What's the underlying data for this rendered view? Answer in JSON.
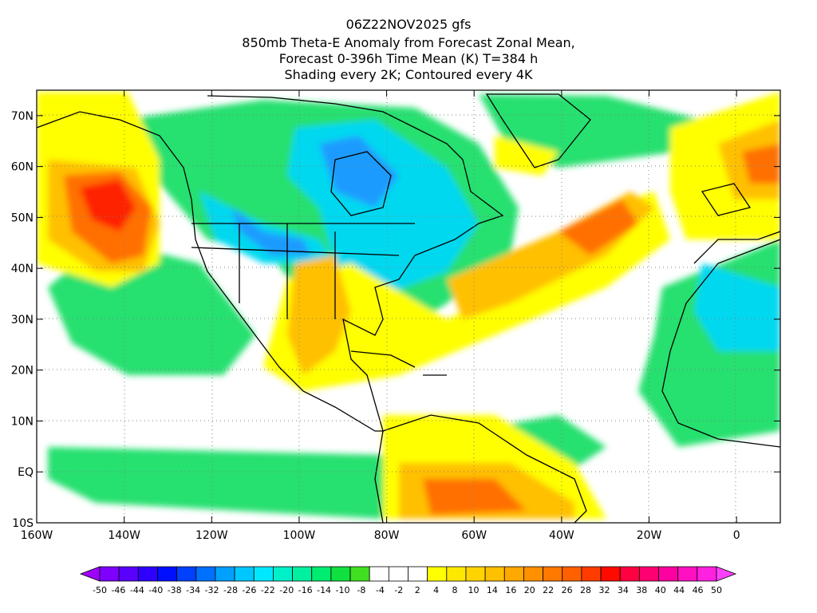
{
  "title": {
    "lines": [
      "06Z22NOV2025 gfs",
      "850mb Theta-E Anomaly from Forecast Zonal Mean,",
      "Forecast 0-396h Time Mean (K) T=384 h",
      "Shading every 2K; Contoured every 4K"
    ]
  },
  "axes": {
    "lon_labels": [
      "160W",
      "140W",
      "120W",
      "100W",
      "80W",
      "60W",
      "40W",
      "20W",
      "0"
    ],
    "lat_labels": [
      "70N",
      "60N",
      "50N",
      "40N",
      "30N",
      "20N",
      "10N",
      "EQ",
      "10S"
    ],
    "lon_values": [
      -160,
      -140,
      -120,
      -100,
      -80,
      -60,
      -40,
      -20,
      0
    ],
    "lat_values": [
      70,
      60,
      50,
      40,
      30,
      20,
      10,
      0,
      -10
    ],
    "lon_range": [
      -160,
      10
    ],
    "lat_range": [
      -10,
      75
    ]
  },
  "colorbar": {
    "labels": [
      "-50",
      "-46",
      "-44",
      "-40",
      "-38",
      "-34",
      "-32",
      "-28",
      "-26",
      "-22",
      "-20",
      "-16",
      "-14",
      "-10",
      "-8",
      "-4",
      "-2",
      "2",
      "4",
      "8",
      "10",
      "14",
      "16",
      "20",
      "22",
      "26",
      "28",
      "32",
      "34",
      "38",
      "40",
      "44",
      "46",
      "50"
    ],
    "colors": [
      "#a000ff",
      "#7e00ff",
      "#5a00ff",
      "#3000ff",
      "#0010ff",
      "#0040ff",
      "#0070ff",
      "#00a0ff",
      "#00c8ff",
      "#00e8ff",
      "#00f0c8",
      "#00f0a0",
      "#00ec70",
      "#10e040",
      "#40e020",
      "#ffffff",
      "#ffffff",
      "#ffffff",
      "#ffff00",
      "#ffe800",
      "#ffd400",
      "#ffc000",
      "#ffa800",
      "#ff9000",
      "#ff7800",
      "#ff6000",
      "#ff3c00",
      "#ff0a00",
      "#ff0040",
      "#ff0070",
      "#ff00a0",
      "#ff10c0",
      "#ff20e0",
      "#ff40ff"
    ]
  },
  "colors": {
    "anom_neg_strong": "#1e9bff",
    "anom_neg_mid": "#00d8f0",
    "anom_neg_weak": "#28e070",
    "neutral": "#ffffff",
    "anom_pos_weak": "#ffff00",
    "anom_pos_mid": "#ffc000",
    "anom_pos_strong": "#ff7000",
    "anom_pos_max": "#ff2000",
    "coastline": "#000000"
  }
}
